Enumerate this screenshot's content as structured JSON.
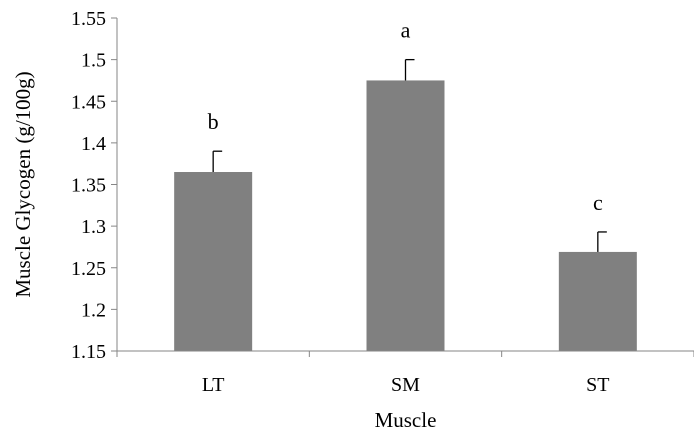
{
  "chart_data": {
    "type": "bar",
    "title": "",
    "xlabel": "Muscle",
    "ylabel": "Muscle Glycogen (g/100g)",
    "categories": [
      "LT",
      "SM",
      "ST"
    ],
    "values": [
      1.365,
      1.475,
      1.269
    ],
    "error_plus": [
      0.025,
      0.025,
      0.024
    ],
    "significance_letters": [
      "b",
      "a",
      "c"
    ],
    "ylim": [
      1.15,
      1.55
    ],
    "yticks": [
      1.15,
      1.2,
      1.25,
      1.3,
      1.35,
      1.4,
      1.45,
      1.5,
      1.55
    ],
    "ytick_labels": [
      "1.15",
      "1.2",
      "1.25",
      "1.3",
      "1.35",
      "1.4",
      "1.45",
      "1.5",
      "1.55"
    ],
    "grid": false,
    "legend": "none",
    "bar_color": "#808080",
    "axis_color": "#868686"
  }
}
